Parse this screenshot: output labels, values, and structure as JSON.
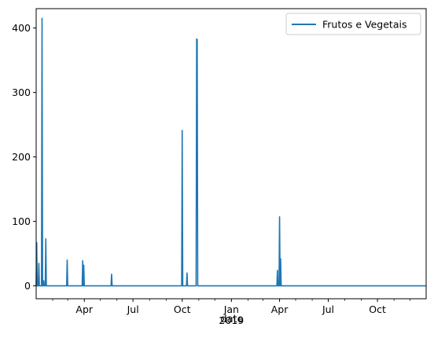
{
  "chart_data": {
    "type": "line",
    "xlabel": "date",
    "ylabel": "",
    "ylim": [
      -20,
      430
    ],
    "xlim": [
      "2018-01-01",
      "2019-12-31"
    ],
    "grid": false,
    "legend_position": "top-right",
    "series": [
      {
        "name": "Frutos e Vegetais",
        "color": "#1f77b4",
        "x": [
          "2018-01-01",
          "2018-01-02",
          "2018-01-03",
          "2018-01-04",
          "2018-01-05",
          "2018-01-06",
          "2018-01-07",
          "2018-01-08",
          "2018-01-09",
          "2018-01-10",
          "2018-01-11",
          "2018-01-12",
          "2018-01-13",
          "2018-01-14",
          "2018-01-15",
          "2018-01-16",
          "2018-01-17",
          "2018-01-18",
          "2018-01-19",
          "2018-01-20",
          "2018-01-21",
          "2018-01-22",
          "2018-01-23",
          "2018-01-24",
          "2018-02-27",
          "2018-02-28",
          "2018-03-01",
          "2018-03-02",
          "2018-03-28",
          "2018-03-29",
          "2018-03-30",
          "2018-03-31",
          "2018-04-01",
          "2018-05-21",
          "2018-05-22",
          "2018-05-23",
          "2018-09-30",
          "2018-10-01",
          "2018-10-02",
          "2018-10-09",
          "2018-10-10",
          "2018-10-11",
          "2018-10-27",
          "2018-10-28",
          "2018-10-29",
          "2018-10-30",
          "2019-03-27",
          "2019-03-28",
          "2019-03-29",
          "2019-03-31",
          "2019-04-01",
          "2019-04-02",
          "2019-04-03",
          "2019-04-04",
          "2019-04-05",
          "2019-12-31"
        ],
        "y": [
          0,
          67,
          0,
          0,
          0,
          35,
          0,
          0,
          0,
          0,
          0,
          415,
          0,
          0,
          8,
          0,
          0,
          0,
          73,
          0,
          0,
          0,
          0,
          0,
          0,
          40,
          0,
          0,
          0,
          39,
          0,
          32,
          0,
          0,
          18,
          0,
          0,
          241,
          0,
          0,
          20,
          0,
          0,
          383,
          382,
          0,
          0,
          24,
          0,
          0,
          107,
          0,
          42,
          0,
          0,
          0
        ]
      }
    ],
    "y_ticks": [
      0,
      100,
      200,
      300,
      400
    ],
    "x_ticks_major": [
      {
        "date": "2018-04-01",
        "label": "Apr"
      },
      {
        "date": "2018-07-01",
        "label": "Jul"
      },
      {
        "date": "2018-10-01",
        "label": "Oct"
      },
      {
        "date": "2019-01-01",
        "label": "Jan",
        "sublabel": "2019"
      },
      {
        "date": "2019-04-01",
        "label": "Apr"
      },
      {
        "date": "2019-07-01",
        "label": "Jul"
      },
      {
        "date": "2019-10-01",
        "label": "Oct"
      }
    ],
    "x_ticks_minor": [
      "2018-02-01",
      "2018-03-01",
      "2018-05-01",
      "2018-06-01",
      "2018-08-01",
      "2018-09-01",
      "2018-11-01",
      "2018-12-01",
      "2019-02-01",
      "2019-03-01",
      "2019-05-01",
      "2019-06-01",
      "2019-08-01",
      "2019-09-01",
      "2019-11-01",
      "2019-12-01"
    ]
  }
}
